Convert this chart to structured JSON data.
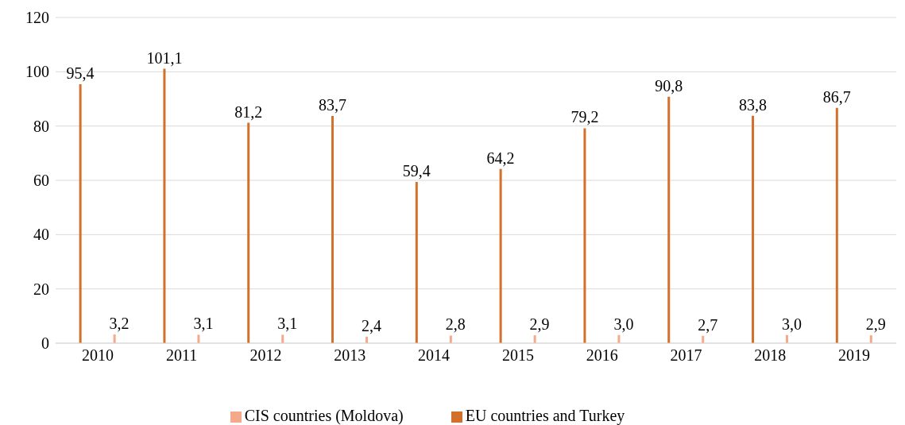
{
  "chart_data": {
    "type": "bar",
    "categories": [
      "2010",
      "2011",
      "2012",
      "2013",
      "2014",
      "2015",
      "2016",
      "2017",
      "2018",
      "2019"
    ],
    "series": [
      {
        "name": "EU countries and Turkey",
        "color": "#d2702c",
        "values": [
          95.4,
          101.1,
          81.2,
          83.7,
          59.4,
          64.2,
          79.2,
          90.8,
          83.8,
          86.7
        ],
        "value_labels": [
          "95,4",
          "101,1",
          "81,2",
          "83,7",
          "59,4",
          "64,2",
          "79,2",
          "90,8",
          "83,8",
          "86,7"
        ]
      },
      {
        "name": "CIS countries (Moldova)",
        "color": "#f4a98a",
        "values": [
          3.2,
          3.1,
          3.1,
          2.4,
          2.8,
          2.9,
          3.0,
          2.7,
          3.0,
          2.9
        ],
        "value_labels": [
          "3,2",
          "3,1",
          "3,1",
          "2,4",
          "2,8",
          "2,9",
          "3,0",
          "2,7",
          "3,0",
          "2,9"
        ]
      }
    ],
    "ylim": [
      0,
      120
    ],
    "yticks": [
      0,
      20,
      40,
      60,
      80,
      100,
      120
    ],
    "grid": "y",
    "legend": "bottom"
  }
}
